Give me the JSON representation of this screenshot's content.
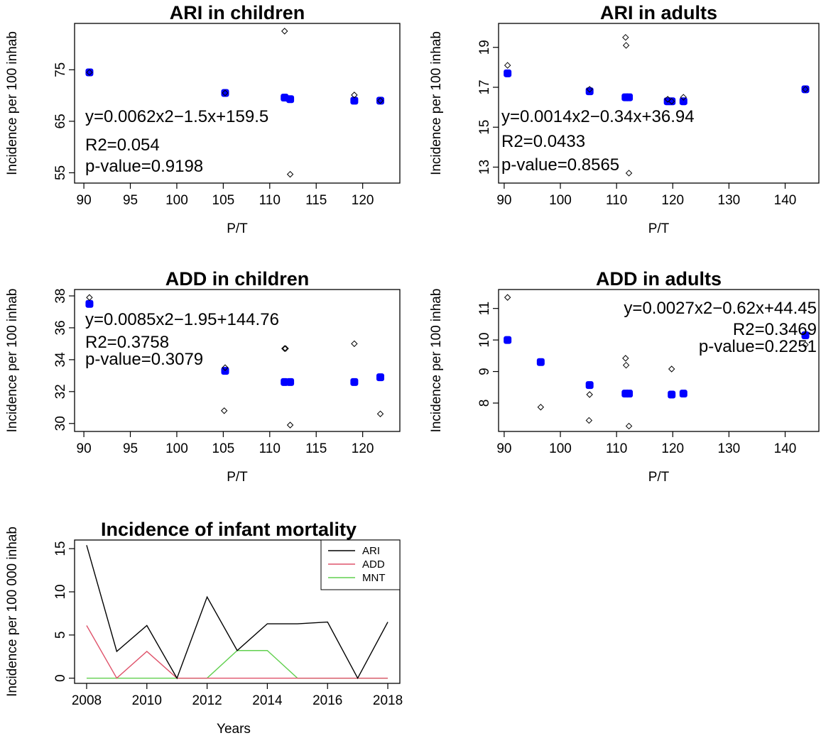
{
  "chart_data": [
    {
      "type": "scatter",
      "title": "ARI in children",
      "xlabel": "P/T",
      "ylabel": "Incidence per 100 inhab",
      "xlim": [
        89,
        124
      ],
      "ylim": [
        53,
        84
      ],
      "xticks": [
        90,
        95,
        100,
        105,
        110,
        115,
        120
      ],
      "yticks": [
        55,
        65,
        75
      ],
      "observed": {
        "x": [
          90.6,
          105.2,
          111.6,
          112.2,
          119.1,
          121.9
        ],
        "y": [
          74.5,
          70.5,
          82.5,
          54.7,
          70.1,
          69.0
        ]
      },
      "fitted": {
        "x": [
          90.6,
          105.2,
          111.6,
          112.2,
          119.1,
          121.9
        ],
        "y": [
          74.5,
          70.5,
          69.6,
          69.3,
          69.0,
          69.0
        ]
      },
      "annotations": [
        "y=0.0062x2−1.5x+159.5",
        "R2=0.054",
        "p-value=0.9198"
      ]
    },
    {
      "type": "scatter",
      "title": "ARI in adults",
      "xlabel": "P/T",
      "ylabel": "Incidence per 100 inhab",
      "xlim": [
        89,
        146
      ],
      "ylim": [
        12.2,
        20.2
      ],
      "xticks": [
        90,
        100,
        110,
        120,
        130,
        140
      ],
      "yticks": [
        13,
        15,
        17,
        19
      ],
      "observed": {
        "x": [
          90.6,
          105.2,
          111.6,
          111.7,
          112.2,
          119.1,
          119.8,
          121.9,
          143.6
        ],
        "y": [
          18.1,
          16.9,
          19.5,
          19.1,
          12.7,
          16.4,
          16.3,
          16.5,
          16.9
        ]
      },
      "fitted": {
        "x": [
          90.6,
          105.2,
          111.6,
          112.2,
          119.1,
          119.8,
          121.9,
          143.6
        ],
        "y": [
          17.7,
          16.8,
          16.5,
          16.5,
          16.3,
          16.3,
          16.3,
          16.9
        ]
      },
      "annotations": [
        "y=0.0014x2−0.34x+36.94",
        "R2=0.0433",
        "p-value=0.8565"
      ]
    },
    {
      "type": "scatter",
      "title": "ADD in children",
      "xlabel": "P/T",
      "ylabel": "Incidence per 100 inhab",
      "xlim": [
        89,
        124
      ],
      "ylim": [
        29.5,
        38.4
      ],
      "xticks": [
        90,
        95,
        100,
        105,
        110,
        115,
        120
      ],
      "yticks": [
        30,
        32,
        34,
        36,
        38
      ],
      "observed": {
        "x": [
          90.6,
          105.2,
          105.1,
          111.6,
          111.7,
          112.2,
          119.1,
          121.9
        ],
        "y": [
          37.9,
          33.5,
          30.8,
          34.7,
          34.7,
          29.9,
          35.0,
          30.6
        ]
      },
      "fitted": {
        "x": [
          90.6,
          105.2,
          111.6,
          112.2,
          119.1,
          121.9
        ],
        "y": [
          37.5,
          33.3,
          32.6,
          32.6,
          32.6,
          32.9
        ]
      },
      "annotations": [
        "y=0.0085x2−1.95+144.76",
        "R2=0.3758",
        "p-value=0.3079"
      ]
    },
    {
      "type": "scatter",
      "title": "ADD in adults",
      "xlabel": "P/T",
      "ylabel": "Incidence per 100 inhab",
      "xlim": [
        89,
        146
      ],
      "ylim": [
        7.1,
        11.6
      ],
      "xticks": [
        90,
        100,
        110,
        120,
        130,
        140
      ],
      "yticks": [
        8,
        9,
        10,
        11
      ],
      "observed": {
        "x": [
          90.6,
          96.5,
          105.2,
          105.1,
          111.6,
          111.7,
          112.2,
          119.8,
          143.6
        ],
        "y": [
          11.35,
          7.87,
          8.27,
          7.45,
          9.42,
          9.2,
          7.27,
          9.08,
          9.85
        ]
      },
      "fitted": {
        "x": [
          90.6,
          96.5,
          105.2,
          111.6,
          112.2,
          119.8,
          121.9,
          143.6
        ],
        "y": [
          10.0,
          9.3,
          8.57,
          8.3,
          8.3,
          8.27,
          8.3,
          10.15
        ]
      },
      "annotations": [
        "y=0.0027x2−0.62x+44.45",
        "R2=0.3469",
        "p-value=0.2251"
      ]
    },
    {
      "type": "line",
      "title": "Incidence of infant mortality",
      "xlabel": "Years",
      "ylabel": "Incidence per 100 000 inhab",
      "xlim": [
        2007.6,
        2018.4
      ],
      "ylim": [
        -0.6,
        16.0
      ],
      "xticks": [
        2008,
        2010,
        2012,
        2014,
        2016,
        2018
      ],
      "yticks": [
        0,
        5,
        10,
        15
      ],
      "x": [
        2008,
        2009,
        2010,
        2011,
        2012,
        2013,
        2014,
        2015,
        2016,
        2017,
        2018
      ],
      "series": [
        {
          "name": "ARI",
          "color": "#000000",
          "values": [
            15.4,
            3.1,
            6.1,
            0.0,
            9.4,
            3.2,
            6.3,
            6.3,
            6.5,
            0.0,
            6.5
          ]
        },
        {
          "name": "ADD",
          "color": "#df536b",
          "values": [
            6.1,
            0.0,
            3.1,
            0.0,
            0.0,
            0.0,
            0.0,
            0.0,
            0.0,
            0.0,
            0.0
          ]
        },
        {
          "name": "MNT",
          "color": "#61d04f",
          "values": [
            0.0,
            0.0,
            0.0,
            0.0,
            0.0,
            3.2,
            3.2,
            0.0,
            0.0,
            0.0,
            0.0
          ]
        }
      ],
      "legend": "top-right"
    }
  ],
  "colors": {
    "observed": "#000000",
    "fitted": "#0000ff"
  }
}
